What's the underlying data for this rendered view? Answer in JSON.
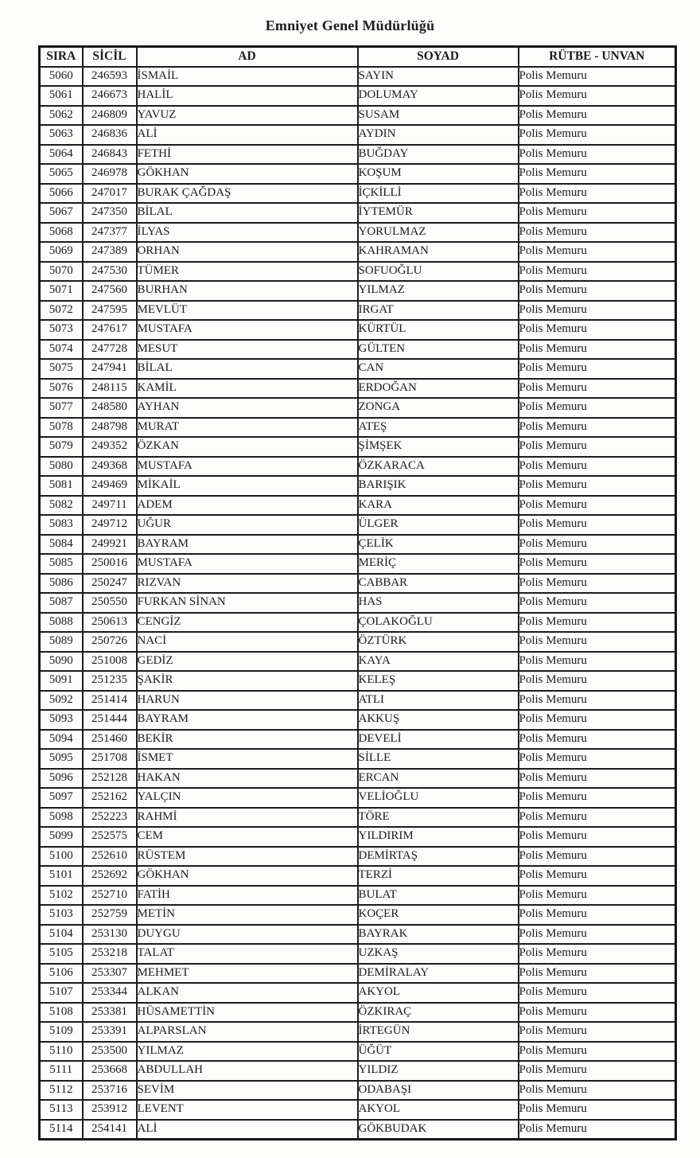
{
  "title": "Emniyet Genel Müdürlüğü",
  "colors": {
    "text": "#1b1b1b",
    "border": "#1c1c1c",
    "background": "#fdfdfc"
  },
  "table": {
    "headers": [
      "SIRA",
      "SİCİL",
      "AD",
      "SOYAD",
      "RÜTBE - UNVAN"
    ],
    "column_keys": [
      "sira",
      "sicil",
      "ad",
      "soyad",
      "rutbe-unvan"
    ],
    "rows": [
      [
        "5060",
        "246593",
        "İSMAİL",
        "SAYIN",
        "Polis Memuru"
      ],
      [
        "5061",
        "246673",
        "HALİL",
        "DOLUMAY",
        "Polis Memuru"
      ],
      [
        "5062",
        "246809",
        "YAVUZ",
        "SUSAM",
        "Polis Memuru"
      ],
      [
        "5063",
        "246836",
        "ALİ",
        "AYDIN",
        "Polis Memuru"
      ],
      [
        "5064",
        "246843",
        "FETHİ",
        "BUĞDAY",
        "Polis Memuru"
      ],
      [
        "5065",
        "246978",
        "GÖKHAN",
        "KOŞUM",
        "Polis Memuru"
      ],
      [
        "5066",
        "247017",
        "BURAK ÇAĞDAŞ",
        "İÇKİLLİ",
        "Polis Memuru"
      ],
      [
        "5067",
        "247350",
        "BİLAL",
        "İYTEMÜR",
        "Polis Memuru"
      ],
      [
        "5068",
        "247377",
        "İLYAS",
        "YORULMAZ",
        "Polis Memuru"
      ],
      [
        "5069",
        "247389",
        "ORHAN",
        "KAHRAMAN",
        "Polis Memuru"
      ],
      [
        "5070",
        "247530",
        "TÜMER",
        "SOFUOĞLU",
        "Polis Memuru"
      ],
      [
        "5071",
        "247560",
        "BURHAN",
        "YILMAZ",
        "Polis Memuru"
      ],
      [
        "5072",
        "247595",
        "MEVLÜT",
        "IRGAT",
        "Polis Memuru"
      ],
      [
        "5073",
        "247617",
        "MUSTAFA",
        "KÜRTÜL",
        "Polis Memuru"
      ],
      [
        "5074",
        "247728",
        "MESUT",
        "GÜLTEN",
        "Polis Memuru"
      ],
      [
        "5075",
        "247941",
        "BİLAL",
        "CAN",
        "Polis Memuru"
      ],
      [
        "5076",
        "248115",
        "KAMİL",
        "ERDOĞAN",
        "Polis Memuru"
      ],
      [
        "5077",
        "248580",
        "AYHAN",
        "ZONGA",
        "Polis Memuru"
      ],
      [
        "5078",
        "248798",
        "MURAT",
        "ATEŞ",
        "Polis Memuru"
      ],
      [
        "5079",
        "249352",
        "ÖZKAN",
        "ŞİMŞEK",
        "Polis Memuru"
      ],
      [
        "5080",
        "249368",
        "MUSTAFA",
        "ÖZKARACA",
        "Polis Memuru"
      ],
      [
        "5081",
        "249469",
        "MİKAİL",
        "BARIŞIK",
        "Polis Memuru"
      ],
      [
        "5082",
        "249711",
        "ADEM",
        "KARA",
        "Polis Memuru"
      ],
      [
        "5083",
        "249712",
        "UĞUR",
        "ÜLGER",
        "Polis Memuru"
      ],
      [
        "5084",
        "249921",
        "BAYRAM",
        "ÇELİK",
        "Polis Memuru"
      ],
      [
        "5085",
        "250016",
        "MUSTAFA",
        "MERİÇ",
        "Polis Memuru"
      ],
      [
        "5086",
        "250247",
        "RIZVAN",
        "CABBAR",
        "Polis Memuru"
      ],
      [
        "5087",
        "250550",
        "FURKAN SİNAN",
        "HAS",
        "Polis Memuru"
      ],
      [
        "5088",
        "250613",
        "CENGİZ",
        "ÇOLAKOĞLU",
        "Polis Memuru"
      ],
      [
        "5089",
        "250726",
        "NACİ",
        "ÖZTÜRK",
        "Polis Memuru"
      ],
      [
        "5090",
        "251008",
        "GEDİZ",
        "KAYA",
        "Polis Memuru"
      ],
      [
        "5091",
        "251235",
        "ŞAKİR",
        "KELEŞ",
        "Polis Memuru"
      ],
      [
        "5092",
        "251414",
        "HARUN",
        "ATLI",
        "Polis Memuru"
      ],
      [
        "5093",
        "251444",
        "BAYRAM",
        "AKKUŞ",
        "Polis Memuru"
      ],
      [
        "5094",
        "251460",
        "BEKİR",
        "DEVELİ",
        "Polis Memuru"
      ],
      [
        "5095",
        "251708",
        "İSMET",
        "SİLLE",
        "Polis Memuru"
      ],
      [
        "5096",
        "252128",
        "HAKAN",
        "ERCAN",
        "Polis Memuru"
      ],
      [
        "5097",
        "252162",
        "YALÇIN",
        "VELİOĞLU",
        "Polis Memuru"
      ],
      [
        "5098",
        "252223",
        "RAHMİ",
        "TÖRE",
        "Polis Memuru"
      ],
      [
        "5099",
        "252575",
        "CEM",
        "YILDIRIM",
        "Polis Memuru"
      ],
      [
        "5100",
        "252610",
        "RÜSTEM",
        "DEMİRTAŞ",
        "Polis Memuru"
      ],
      [
        "5101",
        "252692",
        "GÖKHAN",
        "TERZİ",
        "Polis Memuru"
      ],
      [
        "5102",
        "252710",
        "FATİH",
        "BULAT",
        "Polis Memuru"
      ],
      [
        "5103",
        "252759",
        "METİN",
        "KOÇER",
        "Polis Memuru"
      ],
      [
        "5104",
        "253130",
        "DUYGU",
        "BAYRAK",
        "Polis Memuru"
      ],
      [
        "5105",
        "253218",
        "TALAT",
        "UZKAŞ",
        "Polis Memuru"
      ],
      [
        "5106",
        "253307",
        "MEHMET",
        "DEMİRALAY",
        "Polis Memuru"
      ],
      [
        "5107",
        "253344",
        "ALKAN",
        "AKYOL",
        "Polis Memuru"
      ],
      [
        "5108",
        "253381",
        "HÜSAMETTİN",
        "ÖZKIRAÇ",
        "Polis Memuru"
      ],
      [
        "5109",
        "253391",
        "ALPARSLAN",
        "İRTEGÜN",
        "Polis Memuru"
      ],
      [
        "5110",
        "253500",
        "YILMAZ",
        "ÜĞÜT",
        "Polis Memuru"
      ],
      [
        "5111",
        "253668",
        "ABDULLAH",
        "YILDIZ",
        "Polis Memuru"
      ],
      [
        "5112",
        "253716",
        "SEVİM",
        "ODABAŞI",
        "Polis Memuru"
      ],
      [
        "5113",
        "253912",
        "LEVENT",
        "AKYOL",
        "Polis Memuru"
      ],
      [
        "5114",
        "254141",
        "ALİ",
        "GÖKBUDAK",
        "Polis Memuru"
      ]
    ]
  }
}
